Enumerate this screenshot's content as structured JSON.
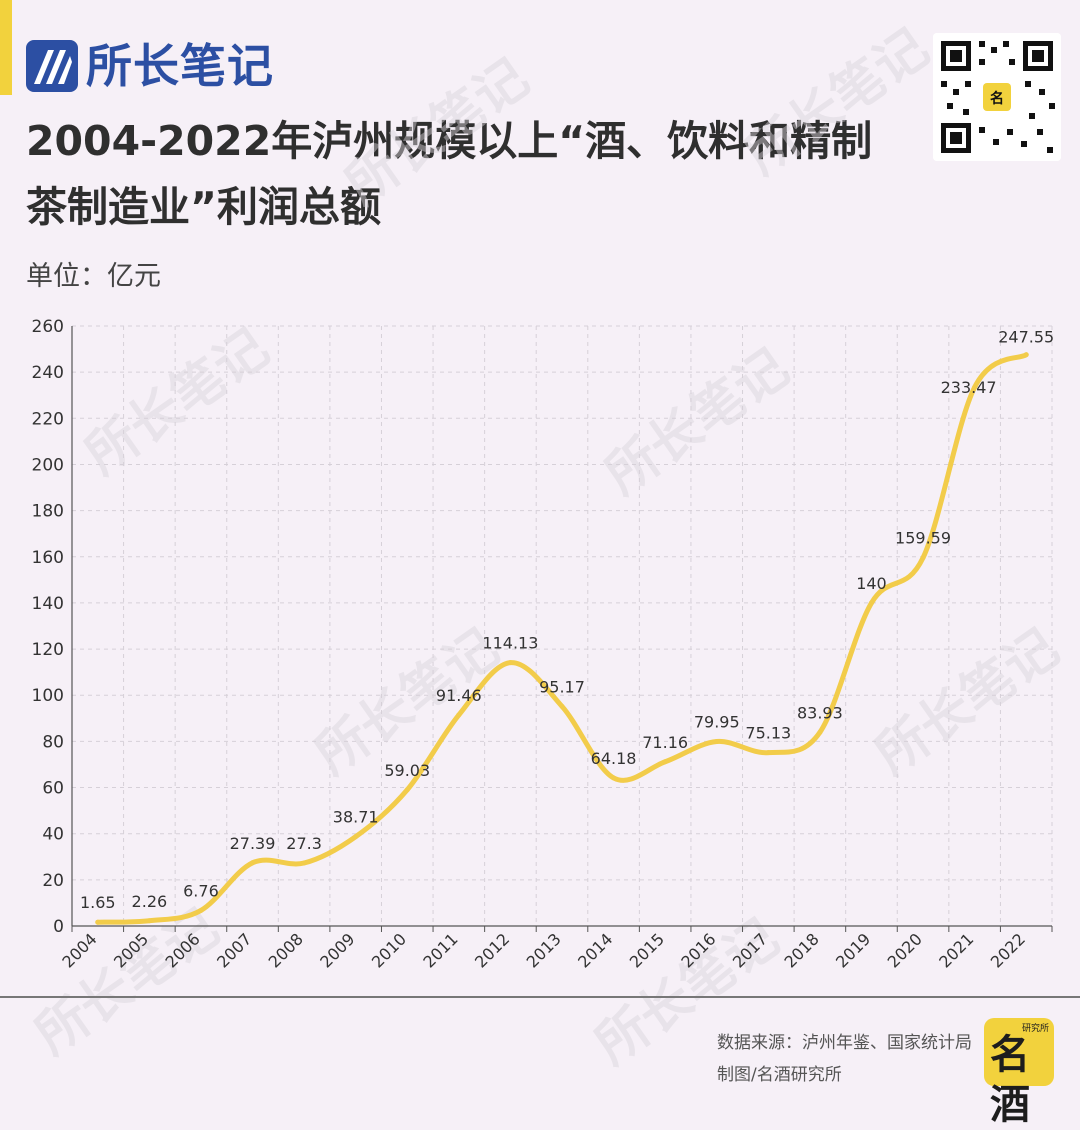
{
  "brand": {
    "name": "所长笔记"
  },
  "title": "2004-2022年泸州规模以上“酒、饮料和精制茶制造业”利润总额",
  "unit_label": "单位：亿元",
  "watermark": "所长笔记",
  "footer": {
    "source": "数据来源：泸州年鉴、国家统计局",
    "credit": "制图/名酒研究所",
    "logo_text": "名酒",
    "logo_small": "研究所"
  },
  "colors": {
    "line": "#f2cc4a",
    "accent": "#f2d23d",
    "brand": "#2c4fa3",
    "background": "#f6f0f7"
  },
  "chart_data": {
    "type": "line",
    "title": "2004-2022年泸州规模以上“酒、饮料和精制茶制造业”利润总额",
    "ylabel": "单位：亿元",
    "xlabel": "",
    "ylim": [
      0,
      260
    ],
    "yticks": [
      0,
      20,
      40,
      60,
      80,
      100,
      120,
      140,
      160,
      180,
      200,
      220,
      240,
      260
    ],
    "grid": true,
    "categories": [
      "2004",
      "2005",
      "2006",
      "2007",
      "2008",
      "2009",
      "2010",
      "2011",
      "2012",
      "2013",
      "2014",
      "2015",
      "2016",
      "2017",
      "2018",
      "2019",
      "2020",
      "2021",
      "2022"
    ],
    "values": [
      1.65,
      2.26,
      6.76,
      27.39,
      27.3,
      38.71,
      59.03,
      91.46,
      114.13,
      95.17,
      64.18,
      71.16,
      79.95,
      75.13,
      83.93,
      140,
      159.59,
      233.47,
      247.55
    ],
    "data_labels": [
      "1.65",
      "2.26",
      "6.76",
      "27.39",
      "27.3",
      "38.71",
      "59.03",
      "91.46",
      "114.13",
      "95.17",
      "64.18",
      "71.16",
      "79.95",
      "75.13",
      "83.93",
      "140",
      "159.59",
      "233.47",
      "247.55"
    ]
  }
}
